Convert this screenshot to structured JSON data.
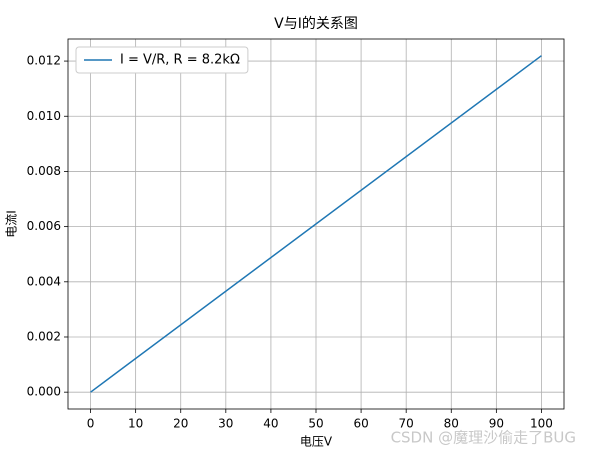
{
  "chart_data": {
    "type": "line",
    "title": "V与I的关系图",
    "x_label": "电压V",
    "y_label": "电流I",
    "x": [
      0,
      100
    ],
    "series": [
      {
        "name": "I = V/R, R = 8.2kΩ",
        "color": "#1f77b4",
        "values": [
          0,
          0.012195
        ]
      }
    ],
    "xlim": [
      -5,
      105
    ],
    "xticks": [
      0,
      10,
      20,
      30,
      40,
      50,
      60,
      70,
      80,
      90,
      100
    ],
    "ylim": [
      -0.00061,
      0.0128
    ],
    "yticks": [
      {
        "value": 0,
        "label": "0.000"
      },
      {
        "value": 0.002,
        "label": "0.002"
      },
      {
        "value": 0.004,
        "label": "0.004"
      },
      {
        "value": 0.006,
        "label": "0.006"
      },
      {
        "value": 0.008,
        "label": "0.008"
      },
      {
        "value": 0.01,
        "label": "0.010"
      },
      {
        "value": 0.012,
        "label": "0.012"
      }
    ],
    "grid": true,
    "legend": "upper-left",
    "watermark": "CSDN @魔理沙偷走了BUG"
  }
}
